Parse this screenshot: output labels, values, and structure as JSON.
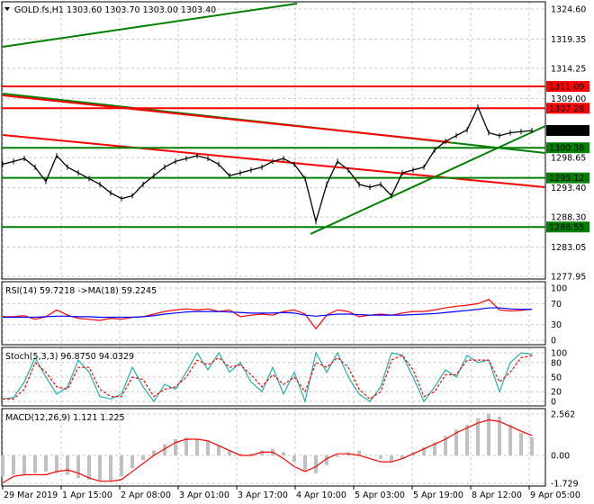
{
  "header": {
    "symbol": "GOLD.fs,H1",
    "ohlc": "1303.60 1303.70 1303.00 1303.40"
  },
  "colors": {
    "up_level": "#ff0000",
    "support": "#008000",
    "current": "#000000",
    "rsi": "#ff0000",
    "rsi_ma": "#0000ff",
    "stoch_main": "#20b2aa",
    "stoch_signal": "#ff0000",
    "macd_hist": "#c0c0c0",
    "macd_signal": "#ff0000"
  },
  "chart_data": [
    {
      "type": "line",
      "title": "GOLD.fs,H1",
      "ylim": [
        1277.95,
        1324.6
      ],
      "y_ticks": [
        "1324.60",
        "1319.35",
        "1314.25",
        "1309.00",
        "1298.65",
        "1293.40",
        "1288.30",
        "1283.05",
        "1277.95"
      ],
      "x_ticks": [
        "29 Mar 2019",
        "1 Apr 15:00",
        "2 Apr 08:00",
        "3 Apr 01:00",
        "3 Apr 17:00",
        "4 Apr 10:00",
        "5 Apr 03:00",
        "5 Apr 19:00",
        "8 Apr 12:00",
        "9 Apr 05:00"
      ],
      "close": [
        1297.5,
        1298,
        1298.5,
        1297,
        1294.5,
        1299,
        1297,
        1296,
        1295,
        1294,
        1292.5,
        1291.5,
        1292,
        1294,
        1295.5,
        1297,
        1298,
        1298.5,
        1299,
        1298.5,
        1297.5,
        1295.5,
        1296,
        1296.5,
        1297,
        1298,
        1298.5,
        1297.5,
        1295,
        1287.5,
        1294,
        1298,
        1296.5,
        1294,
        1293.5,
        1294,
        1292,
        1296,
        1296.5,
        1297,
        1300,
        1301.5,
        1302.5,
        1303.5,
        1307.5,
        1303,
        1302.5,
        1303,
        1303.2,
        1303.4
      ],
      "levels": [
        {
          "value": 1311.09,
          "label": "1311.09",
          "color": "#ff0000"
        },
        {
          "value": 1307.28,
          "label": "1307.28",
          "color": "#ff0000"
        },
        {
          "value": 1303.4,
          "label": "1303.40",
          "color": "#000000"
        },
        {
          "value": 1300.38,
          "label": "1300.38",
          "color": "#008000"
        },
        {
          "value": 1295.12,
          "label": "1295.12",
          "color": "#008000"
        },
        {
          "value": 1286.55,
          "label": "1286.55",
          "color": "#008000"
        }
      ]
    },
    {
      "type": "line",
      "title": "RSI(14) 59.7218  ->MA(18) 59.2245",
      "ylim": [
        0,
        100
      ],
      "y_ticks": [
        "100",
        "70",
        "30",
        "0"
      ],
      "series": [
        {
          "name": "RSI(14)",
          "values": [
            45,
            45,
            47,
            40,
            45,
            58,
            48,
            42,
            40,
            38,
            42,
            40,
            44,
            45,
            50,
            55,
            58,
            60,
            58,
            60,
            55,
            58,
            45,
            48,
            50,
            48,
            55,
            58,
            50,
            22,
            48,
            58,
            55,
            45,
            48,
            50,
            48,
            52,
            55,
            55,
            58,
            62,
            65,
            67,
            70,
            78,
            58,
            56,
            57,
            59.72
          ]
        },
        {
          "name": "MA(18)",
          "values": [
            44,
            44,
            44,
            44,
            45,
            46,
            46,
            45,
            45,
            44,
            44,
            44,
            44,
            45,
            47,
            50,
            52,
            54,
            55,
            55,
            55,
            54,
            53,
            52,
            52,
            52,
            53,
            52,
            48,
            46,
            48,
            50,
            50,
            49,
            48,
            48,
            48,
            48,
            49,
            50,
            51,
            53,
            55,
            57,
            59,
            62,
            62,
            60,
            59,
            59.22
          ]
        }
      ]
    },
    {
      "type": "line",
      "title": "Stoch(5,3,3) 96.8750 94.0329",
      "ylim": [
        0,
        100
      ],
      "y_ticks": [
        "100",
        "80",
        "50",
        "20",
        "0"
      ],
      "series": [
        {
          "name": "Stoch main",
          "values": [
            5,
            8,
            40,
            90,
            50,
            15,
            30,
            85,
            60,
            10,
            5,
            15,
            70,
            30,
            0,
            35,
            25,
            60,
            100,
            65,
            100,
            60,
            80,
            40,
            20,
            70,
            15,
            60,
            0,
            100,
            60,
            100,
            50,
            15,
            0,
            30,
            100,
            95,
            50,
            0,
            30,
            65,
            50,
            95,
            80,
            85,
            20,
            80,
            100,
            96.88
          ]
        },
        {
          "name": "Signal",
          "values": [
            5,
            5,
            25,
            80,
            60,
            30,
            25,
            70,
            70,
            25,
            10,
            10,
            50,
            45,
            10,
            25,
            30,
            50,
            85,
            75,
            90,
            70,
            75,
            55,
            30,
            55,
            35,
            50,
            20,
            80,
            70,
            90,
            70,
            25,
            5,
            20,
            85,
            95,
            65,
            10,
            20,
            55,
            55,
            85,
            85,
            85,
            40,
            60,
            90,
            94.03
          ]
        }
      ]
    },
    {
      "type": "bar",
      "title": "MACD(12,26,9) 1.121 1.225",
      "ylim": [
        -1.729,
        2.562
      ],
      "y_ticks": [
        "2.562",
        "0.00",
        "-1.729"
      ],
      "series": [
        {
          "name": "MACD",
          "values": [
            -1.3,
            -1.2,
            -1.2,
            -1.1,
            -1.0,
            -1.1,
            -1.2,
            -1.4,
            -1.5,
            -1.6,
            -1.6,
            -1.3,
            -0.8,
            -0.3,
            0.3,
            0.7,
            1.0,
            1.1,
            1.0,
            0.9,
            0.6,
            0.3,
            0.1,
            0.1,
            0.3,
            0.4,
            0.2,
            -0.4,
            -1.0,
            -1.1,
            -0.6,
            -0.1,
            0.2,
            0.3,
            0.0,
            -0.2,
            -0.4,
            -0.2,
            0.2,
            0.5,
            0.8,
            1.2,
            1.6,
            1.9,
            2.3,
            2.6,
            2.4,
            1.9,
            1.4,
            1.12
          ]
        },
        {
          "name": "Signal",
          "values": [
            -1.7,
            -1.3,
            -1.2,
            -1.2,
            -1.2,
            -1.0,
            -0.9,
            -1.1,
            -1.4,
            -1.6,
            -1.6,
            -1.5,
            -1.0,
            -0.5,
            0.0,
            0.4,
            0.8,
            1.0,
            1.0,
            0.9,
            0.6,
            0.3,
            0.0,
            0.0,
            0.2,
            0.2,
            -0.2,
            -0.7,
            -1.0,
            -0.7,
            -0.2,
            0.1,
            0.1,
            0.0,
            -0.2,
            -0.4,
            -0.4,
            -0.2,
            0.1,
            0.4,
            0.7,
            1.0,
            1.4,
            1.7,
            2.0,
            2.2,
            2.1,
            1.8,
            1.5,
            1.225
          ]
        }
      ]
    }
  ]
}
